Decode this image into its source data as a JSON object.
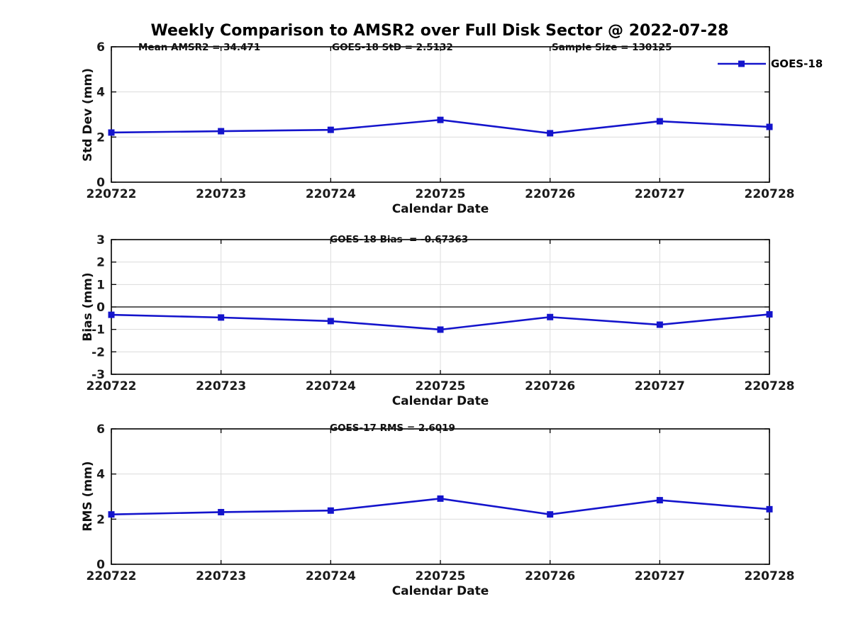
{
  "figure": {
    "title": "Weekly Comparison to AMSR2 over Full Disk Sector @ 2022-07-28",
    "legend": {
      "label": "GOES-18"
    }
  },
  "colors": {
    "series": "#1414cc",
    "grid": "#dcdcdc",
    "axis": "#000000",
    "zero_line": "#000000",
    "tick_text": "#1a1a1a"
  },
  "chart_data": [
    {
      "type": "line",
      "name": "std-dev",
      "title": "",
      "annotations": [
        {
          "text": "Mean AMSR2 = 34.471"
        },
        {
          "text": "GOES-18 StD = 2.5132"
        },
        {
          "text": "Sample Size = 130125"
        }
      ],
      "categories": [
        "220722",
        "220723",
        "220724",
        "220725",
        "220726",
        "220727",
        "220728"
      ],
      "series": [
        {
          "name": "GOES-18",
          "values": [
            2.2,
            2.26,
            2.32,
            2.76,
            2.17,
            2.7,
            2.45
          ]
        }
      ],
      "xlabel": "Calendar Date",
      "ylabel": "Std Dev (mm)",
      "ylim": [
        0,
        6
      ],
      "yticks": [
        0,
        2,
        4,
        6
      ],
      "grid": true,
      "zero_line": false,
      "legend_position": "top-right-outside"
    },
    {
      "type": "line",
      "name": "bias",
      "title": "",
      "annotations": [
        {
          "text": "GOES-18 Bias  = -0.67363"
        }
      ],
      "categories": [
        "220722",
        "220723",
        "220724",
        "220725",
        "220726",
        "220727",
        "220728"
      ],
      "series": [
        {
          "name": "GOES-18",
          "values": [
            -0.35,
            -0.47,
            -0.63,
            -1.01,
            -0.45,
            -0.79,
            -0.33
          ]
        }
      ],
      "xlabel": "Calendar Date",
      "ylabel": "Bias (mm)",
      "ylim": [
        -3,
        3
      ],
      "yticks": [
        -3,
        -2,
        -1,
        0,
        1,
        2,
        3
      ],
      "grid": true,
      "zero_line": true,
      "legend_position": "none"
    },
    {
      "type": "line",
      "name": "rms",
      "title": "",
      "annotations": [
        {
          "text": "GOES-17 RMS = 2.6019"
        }
      ],
      "categories": [
        "220722",
        "220723",
        "220724",
        "220725",
        "220726",
        "220727",
        "220728"
      ],
      "series": [
        {
          "name": "GOES-18",
          "values": [
            2.21,
            2.31,
            2.38,
            2.91,
            2.21,
            2.84,
            2.44
          ]
        }
      ],
      "xlabel": "Calendar Date",
      "ylabel": "RMS (mm)",
      "ylim": [
        0,
        6
      ],
      "yticks": [
        0,
        2,
        4,
        6
      ],
      "grid": true,
      "zero_line": false,
      "legend_position": "none"
    }
  ]
}
